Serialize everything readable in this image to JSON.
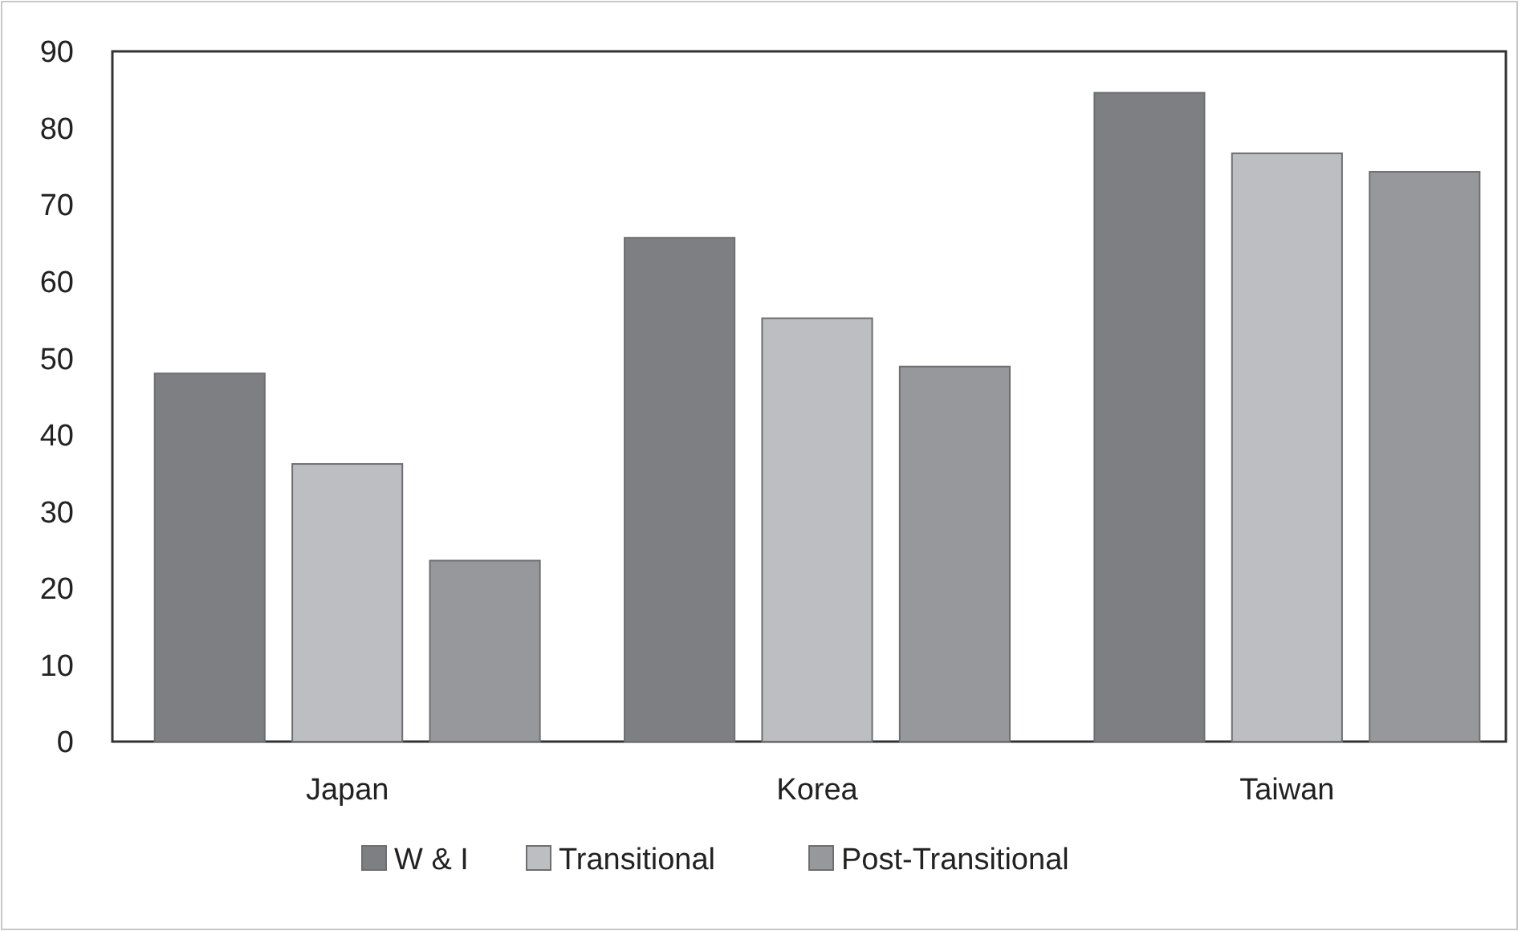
{
  "chart_data": {
    "type": "bar",
    "categories": [
      "Japan",
      "Korea",
      "Taiwan"
    ],
    "series": [
      {
        "name": "W & I",
        "color": "#7e7f83",
        "values": [
          48.0,
          65.7,
          84.6
        ]
      },
      {
        "name": "Transitional",
        "color": "#bdbec2",
        "values": [
          36.2,
          55.2,
          76.7
        ]
      },
      {
        "name": "Post-Transitional",
        "color": "#97989c",
        "values": [
          23.6,
          48.9,
          74.3
        ]
      }
    ],
    "ylim": [
      0,
      90
    ],
    "yticks": [
      0,
      10,
      20,
      30,
      40,
      50,
      60,
      70,
      80,
      90
    ],
    "grid": false,
    "legend": "bottom"
  }
}
